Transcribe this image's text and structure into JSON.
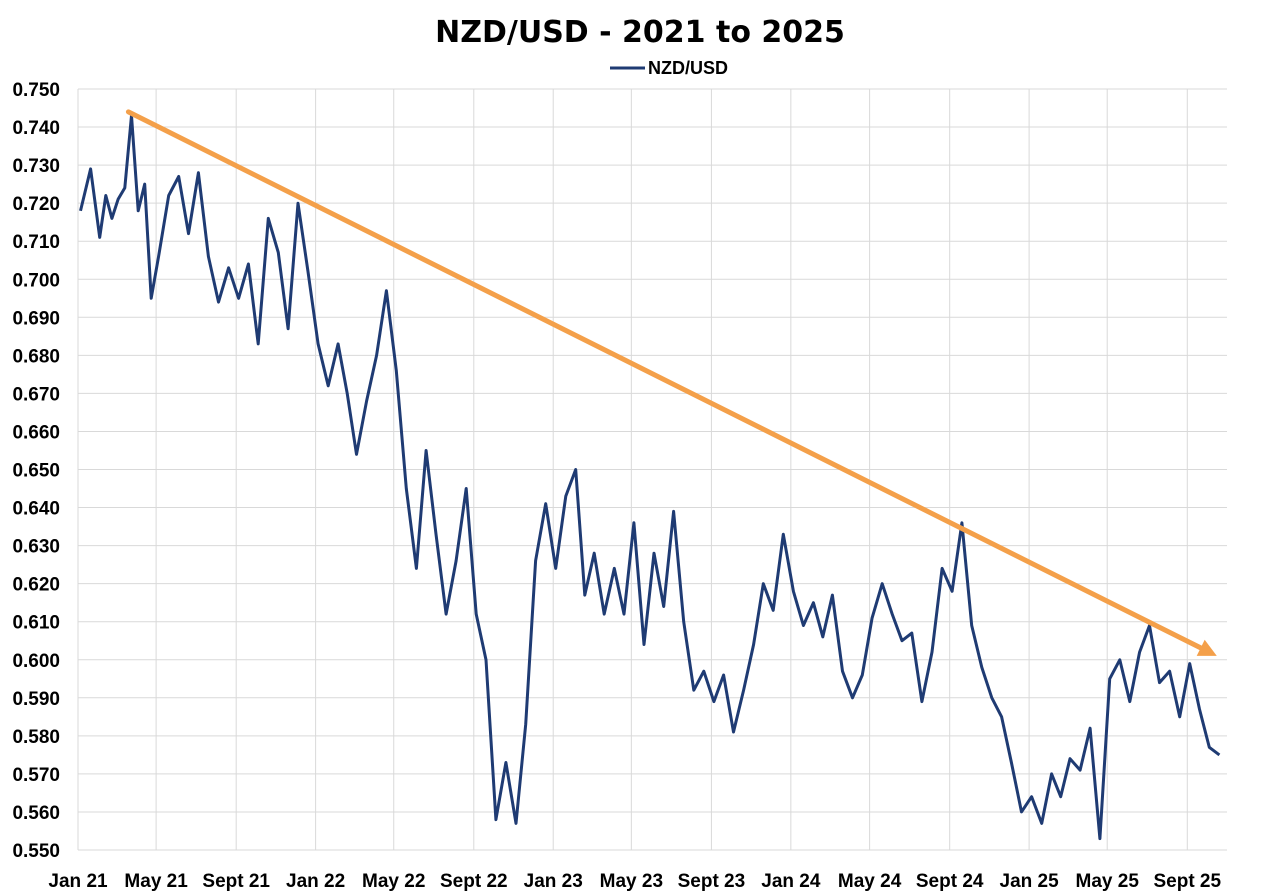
{
  "chart_data": {
    "type": "line",
    "title": "NZD/USD - 2021 to 2025",
    "legend": {
      "entries": [
        "NZD/USD"
      ],
      "placement": "top-center"
    },
    "xlabel": "",
    "ylabel": "",
    "ylim": [
      0.55,
      0.75
    ],
    "ytick_values": [
      0.55,
      0.56,
      0.57,
      0.58,
      0.59,
      0.6,
      0.61,
      0.62,
      0.63,
      0.64,
      0.65,
      0.66,
      0.67,
      0.68,
      0.69,
      0.7,
      0.71,
      0.72,
      0.73,
      0.74,
      0.75
    ],
    "ytick_labels": [
      "0.550",
      "0.560",
      "0.570",
      "0.580",
      "0.590",
      "0.600",
      "0.610",
      "0.620",
      "0.630",
      "0.640",
      "0.650",
      "0.660",
      "0.670",
      "0.680",
      "0.690",
      "0.700",
      "0.710",
      "0.720",
      "0.730",
      "0.740",
      "0.750"
    ],
    "xticks": [
      {
        "date": "2021-01",
        "label": "Jan 21"
      },
      {
        "date": "2021-05",
        "label": "May 21"
      },
      {
        "date": "2021-09",
        "label": "Sept 21"
      },
      {
        "date": "2022-01",
        "label": "Jan 22"
      },
      {
        "date": "2022-05",
        "label": "May 22"
      },
      {
        "date": "2022-09",
        "label": "Sept 22"
      },
      {
        "date": "2023-01",
        "label": "Jan 23"
      },
      {
        "date": "2023-05",
        "label": "May 23"
      },
      {
        "date": "2023-09",
        "label": "Sept 23"
      },
      {
        "date": "2024-01",
        "label": "Jan 24"
      },
      {
        "date": "2024-05",
        "label": "May 24"
      },
      {
        "date": "2024-09",
        "label": "Sept 24"
      },
      {
        "date": "2025-01",
        "label": "Jan 25"
      },
      {
        "date": "2025-05",
        "label": "May 25"
      },
      {
        "date": "2025-09",
        "label": "Sept 25"
      }
    ],
    "grid": true,
    "series": [
      {
        "name": "NZD/USD",
        "color": "#1f3b73",
        "points": [
          [
            "2021-01",
            0.718
          ],
          [
            "2021-01",
            0.729
          ],
          [
            "2021-02",
            0.711
          ],
          [
            "2021-02",
            0.722
          ],
          [
            "2021-02",
            0.716
          ],
          [
            "2021-03",
            0.721
          ],
          [
            "2021-03",
            0.724
          ],
          [
            "2021-03",
            0.743
          ],
          [
            "2021-04",
            0.718
          ],
          [
            "2021-04",
            0.725
          ],
          [
            "2021-04",
            0.695
          ],
          [
            "2021-05",
            0.706
          ],
          [
            "2021-05",
            0.722
          ],
          [
            "2021-06",
            0.727
          ],
          [
            "2021-06",
            0.712
          ],
          [
            "2021-07",
            0.728
          ],
          [
            "2021-07",
            0.706
          ],
          [
            "2021-08",
            0.694
          ],
          [
            "2021-08",
            0.703
          ],
          [
            "2021-09",
            0.695
          ],
          [
            "2021-09",
            0.704
          ],
          [
            "2021-10",
            0.683
          ],
          [
            "2021-10",
            0.716
          ],
          [
            "2021-11",
            0.707
          ],
          [
            "2021-11",
            0.687
          ],
          [
            "2021-12",
            0.72
          ],
          [
            "2021-12",
            0.702
          ],
          [
            "2022-01",
            0.683
          ],
          [
            "2022-01",
            0.672
          ],
          [
            "2022-02",
            0.683
          ],
          [
            "2022-02",
            0.67
          ],
          [
            "2022-03",
            0.654
          ],
          [
            "2022-03",
            0.668
          ],
          [
            "2022-04",
            0.68
          ],
          [
            "2022-04",
            0.697
          ],
          [
            "2022-05",
            0.676
          ],
          [
            "2022-05",
            0.645
          ],
          [
            "2022-06",
            0.624
          ],
          [
            "2022-06",
            0.655
          ],
          [
            "2022-07",
            0.633
          ],
          [
            "2022-07",
            0.612
          ],
          [
            "2022-08",
            0.626
          ],
          [
            "2022-08",
            0.645
          ],
          [
            "2022-09",
            0.612
          ],
          [
            "2022-09",
            0.6
          ],
          [
            "2022-10",
            0.558
          ],
          [
            "2022-10",
            0.573
          ],
          [
            "2022-11",
            0.557
          ],
          [
            "2022-11",
            0.583
          ],
          [
            "2022-12",
            0.626
          ],
          [
            "2022-12",
            0.641
          ],
          [
            "2023-01",
            0.624
          ],
          [
            "2023-01",
            0.643
          ],
          [
            "2023-02",
            0.65
          ],
          [
            "2023-02",
            0.617
          ],
          [
            "2023-03",
            0.628
          ],
          [
            "2023-03",
            0.612
          ],
          [
            "2023-04",
            0.624
          ],
          [
            "2023-04",
            0.612
          ],
          [
            "2023-05",
            0.636
          ],
          [
            "2023-05",
            0.604
          ],
          [
            "2023-06",
            0.628
          ],
          [
            "2023-06",
            0.614
          ],
          [
            "2023-07",
            0.639
          ],
          [
            "2023-07",
            0.61
          ],
          [
            "2023-08",
            0.592
          ],
          [
            "2023-08",
            0.597
          ],
          [
            "2023-09",
            0.589
          ],
          [
            "2023-09",
            0.596
          ],
          [
            "2023-10",
            0.581
          ],
          [
            "2023-10",
            0.592
          ],
          [
            "2023-11",
            0.604
          ],
          [
            "2023-11",
            0.62
          ],
          [
            "2023-12",
            0.613
          ],
          [
            "2023-12",
            0.633
          ],
          [
            "2024-01",
            0.618
          ],
          [
            "2024-01",
            0.609
          ],
          [
            "2024-02",
            0.615
          ],
          [
            "2024-02",
            0.606
          ],
          [
            "2024-03",
            0.617
          ],
          [
            "2024-03",
            0.597
          ],
          [
            "2024-04",
            0.59
          ],
          [
            "2024-04",
            0.596
          ],
          [
            "2024-05",
            0.611
          ],
          [
            "2024-05",
            0.62
          ],
          [
            "2024-06",
            0.612
          ],
          [
            "2024-06",
            0.605
          ],
          [
            "2024-07",
            0.607
          ],
          [
            "2024-07",
            0.589
          ],
          [
            "2024-08",
            0.602
          ],
          [
            "2024-08",
            0.624
          ],
          [
            "2024-09",
            0.618
          ],
          [
            "2024-09",
            0.636
          ],
          [
            "2024-10",
            0.609
          ],
          [
            "2024-10",
            0.598
          ],
          [
            "2024-11",
            0.59
          ],
          [
            "2024-11",
            0.585
          ],
          [
            "2024-12",
            0.573
          ],
          [
            "2024-12",
            0.56
          ],
          [
            "2025-01",
            0.564
          ],
          [
            "2025-01",
            0.557
          ],
          [
            "2025-02",
            0.57
          ],
          [
            "2025-02",
            0.564
          ],
          [
            "2025-03",
            0.574
          ],
          [
            "2025-03",
            0.571
          ],
          [
            "2025-04",
            0.582
          ],
          [
            "2025-04",
            0.553
          ],
          [
            "2025-05",
            0.595
          ],
          [
            "2025-05",
            0.6
          ],
          [
            "2025-06",
            0.589
          ],
          [
            "2025-06",
            0.602
          ],
          [
            "2025-07",
            0.609
          ],
          [
            "2025-07",
            0.594
          ],
          [
            "2025-08",
            0.597
          ],
          [
            "2025-08",
            0.585
          ],
          [
            "2025-09",
            0.599
          ],
          [
            "2025-09",
            0.587
          ],
          [
            "2025-10",
            0.577
          ],
          [
            "2025-10",
            0.575
          ]
        ]
      }
    ],
    "trendline": {
      "color": "#f4a04a",
      "start": [
        "2021-03",
        0.744
      ],
      "end": [
        "2025-10",
        0.601
      ]
    }
  }
}
